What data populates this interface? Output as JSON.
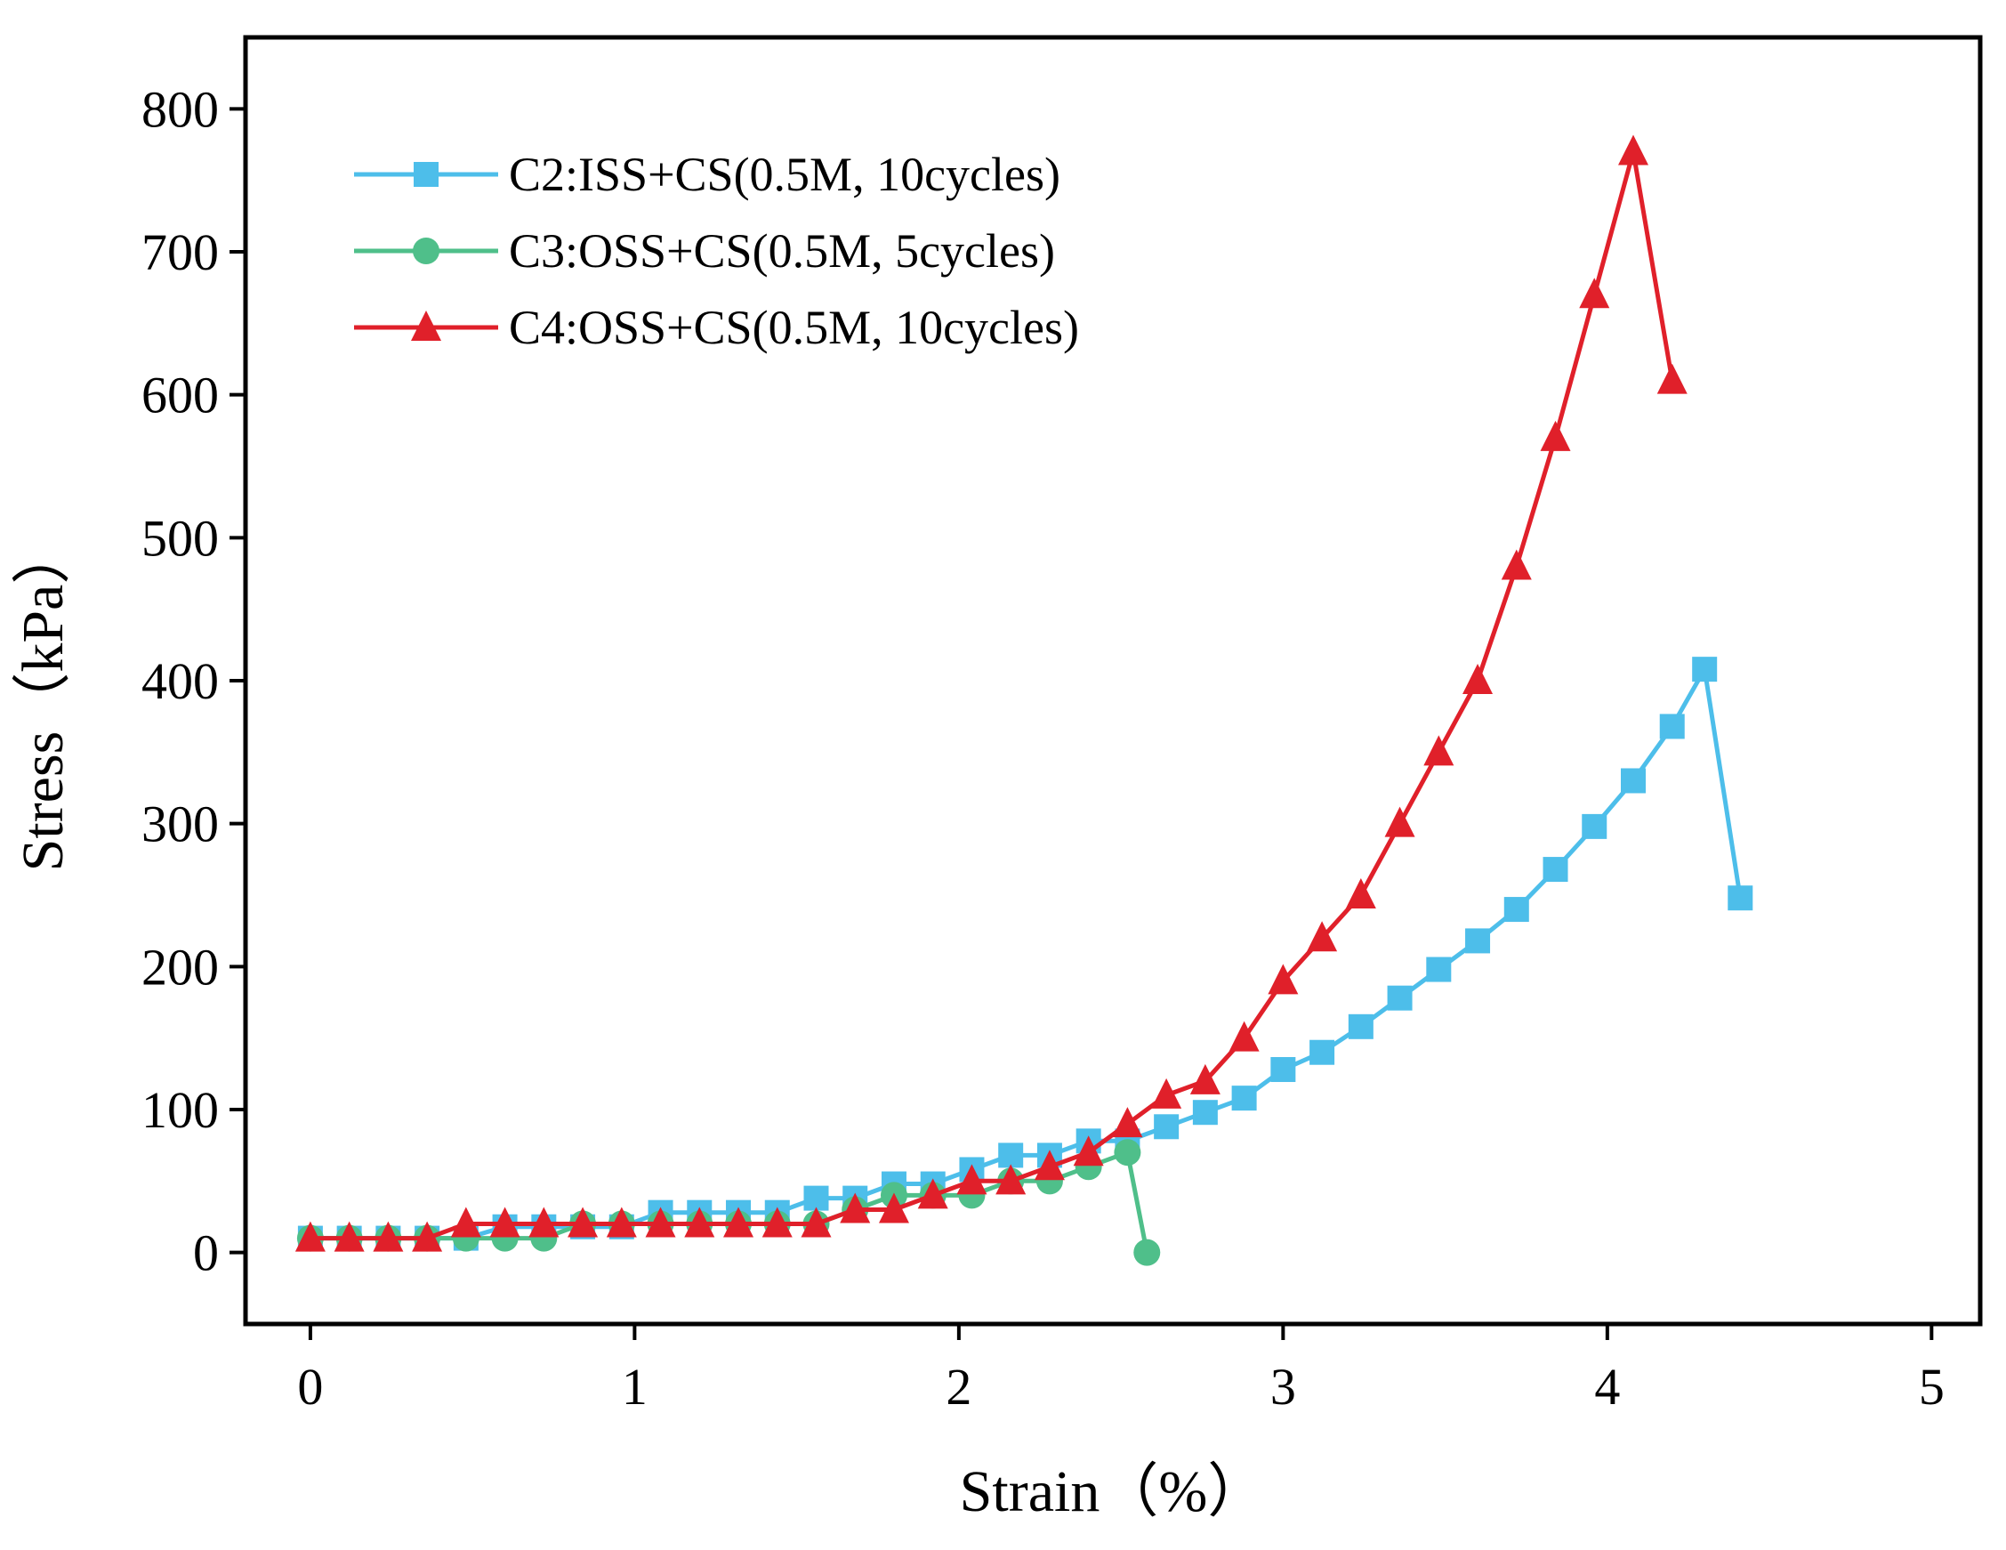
{
  "chart_data": {
    "type": "line",
    "title": "",
    "xlabel": "Strain（%）",
    "ylabel": "Stress（kPa）",
    "xlim": [
      -0.2,
      5.15
    ],
    "ylim": [
      -50,
      850
    ],
    "xticks": [
      0,
      1,
      2,
      3,
      4,
      5
    ],
    "yticks": [
      0,
      100,
      200,
      300,
      400,
      500,
      600,
      700,
      800
    ],
    "grid": false,
    "legend_position": "top-left",
    "series": [
      {
        "name": "C2:ISS+CS(0.5M, 10cycles)",
        "color": "#4dbeea",
        "marker": "square",
        "x": [
          0.0,
          0.12,
          0.24,
          0.36,
          0.48,
          0.6,
          0.72,
          0.84,
          0.96,
          1.08,
          1.2,
          1.32,
          1.44,
          1.56,
          1.68,
          1.8,
          1.92,
          2.04,
          2.16,
          2.28,
          2.4,
          2.52,
          2.64,
          2.76,
          2.88,
          3.0,
          3.12,
          3.24,
          3.36,
          3.48,
          3.6,
          3.72,
          3.84,
          3.96,
          4.08,
          4.2,
          4.3,
          4.41
        ],
        "y": [
          10,
          10,
          10,
          10,
          10,
          18,
          18,
          18,
          18,
          28,
          28,
          28,
          28,
          38,
          38,
          48,
          48,
          58,
          68,
          68,
          78,
          78,
          88,
          98,
          108,
          128,
          140,
          158,
          178,
          198,
          218,
          240,
          268,
          298,
          330,
          368,
          408,
          248
        ]
      },
      {
        "name": "C3:OSS+CS(0.5M, 5cycles)",
        "color": "#4fbf8a",
        "marker": "circle",
        "x": [
          0.0,
          0.12,
          0.24,
          0.36,
          0.48,
          0.6,
          0.72,
          0.84,
          0.96,
          1.08,
          1.2,
          1.32,
          1.44,
          1.56,
          1.68,
          1.8,
          1.92,
          2.04,
          2.16,
          2.28,
          2.4,
          2.52,
          2.58
        ],
        "y": [
          10,
          10,
          10,
          10,
          10,
          10,
          10,
          20,
          20,
          20,
          20,
          20,
          20,
          20,
          30,
          40,
          40,
          40,
          50,
          50,
          60,
          70,
          0
        ]
      },
      {
        "name": "C4:OSS+CS(0.5M, 10cycles)",
        "color": "#e0202a",
        "marker": "triangle",
        "x": [
          0.0,
          0.12,
          0.24,
          0.36,
          0.48,
          0.6,
          0.72,
          0.84,
          0.96,
          1.08,
          1.2,
          1.32,
          1.44,
          1.56,
          1.68,
          1.8,
          1.92,
          2.04,
          2.16,
          2.28,
          2.4,
          2.52,
          2.64,
          2.76,
          2.88,
          3.0,
          3.12,
          3.24,
          3.36,
          3.48,
          3.6,
          3.72,
          3.84,
          3.96,
          4.08,
          4.2
        ],
        "y": [
          10,
          10,
          10,
          10,
          20,
          20,
          20,
          20,
          20,
          20,
          20,
          20,
          20,
          20,
          30,
          30,
          40,
          50,
          50,
          60,
          70,
          90,
          110,
          120,
          150,
          190,
          220,
          250,
          300,
          350,
          400,
          480,
          570,
          670,
          770,
          610
        ]
      }
    ]
  }
}
